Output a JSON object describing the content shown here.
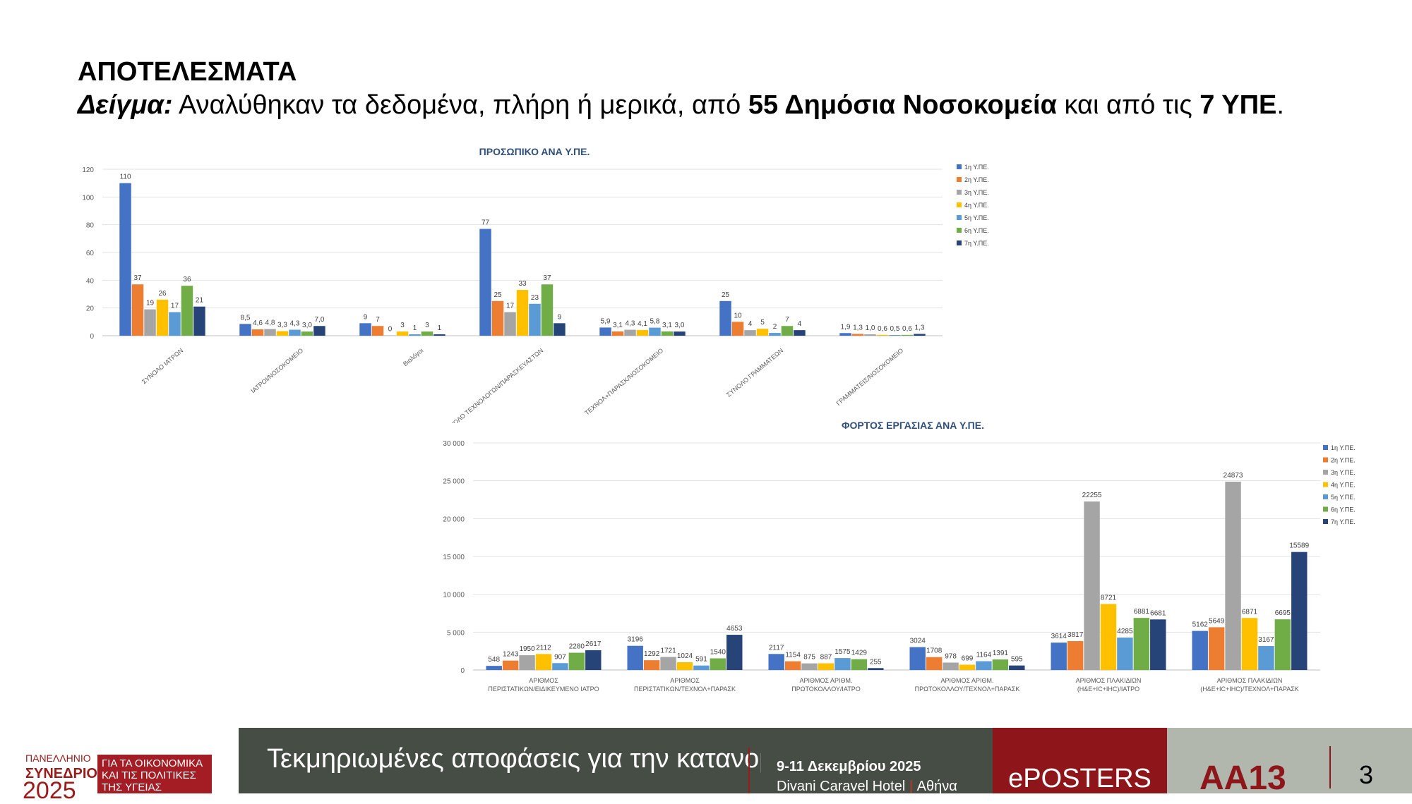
{
  "header": {
    "title": "ΑΠΟΤΕΛΕΣΜΑΤΑ",
    "sample_label": "Δείγμα:",
    "sample_text_1": " Αναλύθηκαν τα δεδομένα, πλήρη ή μερικά, από ",
    "sample_bold_1": "55 Δημόσια Νοσοκομεία",
    "sample_text_2": " και από τις ",
    "sample_bold_2": "7 ΥΠΕ",
    "sample_text_3": "."
  },
  "colors": {
    "series": [
      "#4472c4",
      "#ed7d31",
      "#a5a5a5",
      "#ffc000",
      "#5b9bd5",
      "#70ad47",
      "#264478"
    ],
    "title_blue": "#2f4f7a",
    "footer_red": "#8e1519",
    "footer_green": "#464d44"
  },
  "chart_data": [
    {
      "type": "bar",
      "title": "ΠΡΟΣΩΠΙΚΟ ΑΝΑ Υ.ΠΕ.",
      "ylim": [
        0,
        120
      ],
      "yticks": [
        0,
        20,
        40,
        60,
        80,
        100,
        120
      ],
      "grid": true,
      "legend_position": "right",
      "categories": [
        "ΣΥΝΟΛΟ ΙΑΤΡΩΝ",
        "ΙΑΤΡΟΙ/ΝΟΣΟΚΟΜΕΙΟ",
        "Βιολόγοι",
        "ΣΥΝΟΛΟ ΤΕΧΝΟΛΟΓΩΝ/ΠΑΡΑΣΚΕΥΑΣΤΩΝ",
        "ΤΕΧΝΟΛ+ΠΑΡΑΣΚ/ΝΟΣΟΚΟΜΕΙΟ",
        "ΣΥΝΟΛΟ ΓΡΑΜΜΑΤΕΩΝ",
        "ΓΡΑΜΜΑΤΕΙΣ/ΝΟΣΟΚΟΜΕΙΟ"
      ],
      "series": [
        {
          "name": "1η Υ.ΠΕ.",
          "values": [
            110,
            8.5,
            9,
            77,
            5.9,
            25,
            1.9
          ],
          "labels": [
            "110",
            "8,5",
            "9",
            "77",
            "5,9",
            "25",
            "1,9"
          ]
        },
        {
          "name": "2η Υ.ΠΕ.",
          "values": [
            37,
            4.6,
            7,
            25,
            3.1,
            10,
            1.3
          ],
          "labels": [
            "37",
            "4,6",
            "7",
            "25",
            "3,1",
            "10",
            "1,3"
          ]
        },
        {
          "name": "3η Υ.ΠΕ.",
          "values": [
            19,
            4.8,
            0,
            17,
            4.3,
            4,
            1.0
          ],
          "labels": [
            "19",
            "4,8",
            "0",
            "17",
            "4,3",
            "4",
            "1,0"
          ]
        },
        {
          "name": "4η Υ.ΠΕ.",
          "values": [
            26,
            3.3,
            3,
            33,
            4.1,
            5,
            0.6
          ],
          "labels": [
            "26",
            "3,3",
            "3",
            "33",
            "4,1",
            "5",
            "0,6"
          ]
        },
        {
          "name": "5η Υ.ΠΕ.",
          "values": [
            17,
            4.3,
            1,
            23,
            5.8,
            2,
            0.5
          ],
          "labels": [
            "17",
            "4,3",
            "1",
            "23",
            "5,8",
            "2",
            "0,5"
          ]
        },
        {
          "name": "6η Υ.ΠΕ.",
          "values": [
            36,
            3.0,
            3,
            37,
            3.1,
            7,
            0.6
          ],
          "labels": [
            "36",
            "3,0",
            "3",
            "37",
            "3,1",
            "7",
            "0,6"
          ]
        },
        {
          "name": "7η Υ.ΠΕ.",
          "values": [
            21,
            7.0,
            1,
            9,
            3.0,
            4,
            1.3
          ],
          "labels": [
            "21",
            "7,0",
            "1",
            "9",
            "3,0",
            "4",
            "1,3"
          ]
        }
      ]
    },
    {
      "type": "bar",
      "title": "ΦΟΡΤΟΣ ΕΡΓΑΣΙΑΣ ΑΝΑ Υ.ΠΕ.",
      "ylim": [
        0,
        30000
      ],
      "yticks": [
        0,
        5000,
        10000,
        15000,
        20000,
        25000,
        30000
      ],
      "grid": true,
      "legend_position": "right",
      "categories": [
        [
          "ΑΡΙΘΜΟΣ",
          "ΠΕΡΙΣΤΑΤΙΚΩΝ/ΕΙΔΙΚΕΥΜΕΝΟ ΙΑΤΡΟ"
        ],
        [
          "ΑΡΙΘΜΟΣ",
          "ΠΕΡΙΣΤΑΤΙΚΩΝ/ΤΕΧΝΟΛ+ΠΑΡΑΣΚ"
        ],
        [
          "ΑΡΙΘΜΟΣ ΑΡΙΘΜ.",
          "ΠΡΩΤΟΚΟΛΛΟΥ/ΙΑΤΡΟ"
        ],
        [
          "ΑΡΙΘΜΟΣ ΑΡΙΘΜ.",
          "ΠΡΩΤΟΚΟΛΛΟΥ/ΤΕΧΝΟΛ+ΠΑΡΑΣΚ"
        ],
        [
          "ΑΡΙΘΜΟΣ ΠΛΑΚΙΔΙΩΝ",
          "(Η&Ε+IC+IHC)/ΙΑΤΡΟ"
        ],
        [
          "ΑΡΙΘΜΟΣ ΠΛΑΚΙΔΙΩΝ",
          "(Η&Ε+IC+IHC)/ΤΕΧΝΟΛ+ΠΑΡΑΣΚ"
        ]
      ],
      "series": [
        {
          "name": "1η Υ.ΠΕ.",
          "values": [
            548,
            3196,
            2117,
            3024,
            3614,
            5162
          ]
        },
        {
          "name": "2η Υ.ΠΕ.",
          "values": [
            1243,
            1292,
            1154,
            1708,
            3817,
            5649
          ]
        },
        {
          "name": "3η Υ.ΠΕ.",
          "values": [
            1950,
            1721,
            875,
            978,
            22255,
            24873
          ]
        },
        {
          "name": "4η Υ.ΠΕ.",
          "values": [
            2112,
            1024,
            887,
            699,
            8721,
            6871
          ]
        },
        {
          "name": "5η Υ.ΠΕ.",
          "values": [
            907,
            591,
            1575,
            1164,
            4285,
            3167
          ]
        },
        {
          "name": "6η Υ.ΠΕ.",
          "values": [
            2280,
            1540,
            1429,
            1391,
            6881,
            6695
          ]
        },
        {
          "name": "7η Υ.ΠΕ.",
          "values": [
            2617,
            4653,
            255,
            595,
            6681,
            15589
          ]
        }
      ]
    }
  ],
  "footer": {
    "logo_line1": "ΠΑΝΕΛΛΗΝΙΟ",
    "logo_line2": "ΣΥΝΕΔΡΙΟ",
    "logo_year": "2025",
    "logo_box": "ΓΙΑ ΤΑ ΟΙΚΟΝΟΜΙΚΑ ΚΑΙ ΤΙΣ ΠΟΛΙΤΙΚΕΣ ΤΗΣ ΥΓΕΙΑΣ",
    "conference_title": "Τεκμηριωμένες αποφάσεις για την κατανομή των πόρων στην υγεία",
    "date": "9-11 Δεκεμβρίου 2025",
    "venue": "Divani Caravel Hotel",
    "city": "Αθήνα",
    "eposters": "ePOSTERS",
    "code": "AA13",
    "page": "3"
  }
}
